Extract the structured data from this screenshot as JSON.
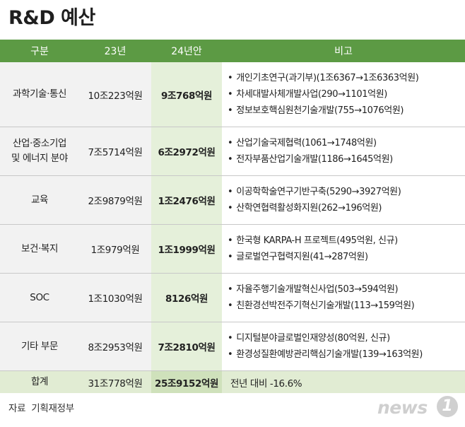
{
  "title": "R&D 예산",
  "headers": [
    "구분",
    "23년",
    "24년안",
    "비고"
  ],
  "rows": [
    {
      "category": "과학기술·통신",
      "y23": "10조223억원",
      "y24": "9조768억원",
      "notes": [
        "개인기초연구(과기부)(1조6367→1조6363억원)",
        "차세대발사체개발사업(290→1101억원)",
        "정보보호핵심원천기술개발(755→1076억원)"
      ]
    },
    {
      "category": "산업·중소기업\n및 에너지 분야",
      "y23": "7조5714억원",
      "y24": "6조2972억원",
      "notes": [
        "산업기술국제협력(1061→1748억원)",
        "전자부품산업기술개발(1186→1645억원)"
      ]
    },
    {
      "category": "교육",
      "y23": "2조9879억원",
      "y24": "1조2476억원",
      "notes": [
        "이공학학술연구기반구축(5290→3927억원)",
        "산학연협력활성화지원(262→196억원)"
      ]
    },
    {
      "category": "보건·복지",
      "y23": "1조979억원",
      "y24": "1조1999억원",
      "notes": [
        "한국형 KARPA-H 프로젝트(495억원, 신규)",
        "글로벌연구협력지원(41→287억원)"
      ]
    },
    {
      "category": "SOC",
      "y23": "1조1030억원",
      "y24": "8126억원",
      "notes": [
        "자율주행기술개발혁신사업(503→594억원)",
        "친환경선박전주기혁신기술개발(113→159억원)"
      ]
    },
    {
      "category": "기타 부문",
      "y23": "8조2953억원",
      "y24": "7조2810억원",
      "notes": [
        "디지털분야글로벌인재양성(80억원, 신규)",
        "환경성질환예방관리핵심기술개발(139→163억원)"
      ]
    }
  ],
  "total": {
    "category": "합계",
    "y23": "31조778억원",
    "y24": "25조9152억원",
    "note": "전년 대비 -16.6%"
  },
  "source": "자료  기획재정부",
  "logo": {
    "text": "news",
    "badge": "1"
  }
}
